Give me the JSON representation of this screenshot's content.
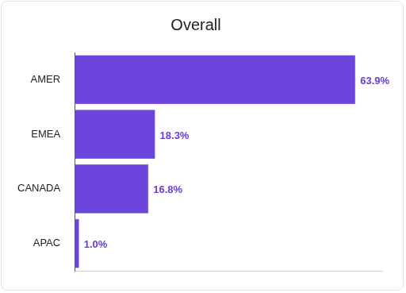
{
  "chart_data": {
    "type": "bar",
    "title": "Overall",
    "orientation": "horizontal",
    "categories": [
      "AMER",
      "EMEA",
      "CANADA",
      "APAC"
    ],
    "values": [
      63.9,
      18.3,
      16.8,
      1.0
    ],
    "value_labels": [
      "63.9%",
      "18.3%",
      "16.8%",
      "1.0%"
    ],
    "color": "#6c45dc",
    "xlim": [
      0,
      70
    ],
    "grid": false,
    "data_labels": true,
    "tick_labels": "y"
  }
}
